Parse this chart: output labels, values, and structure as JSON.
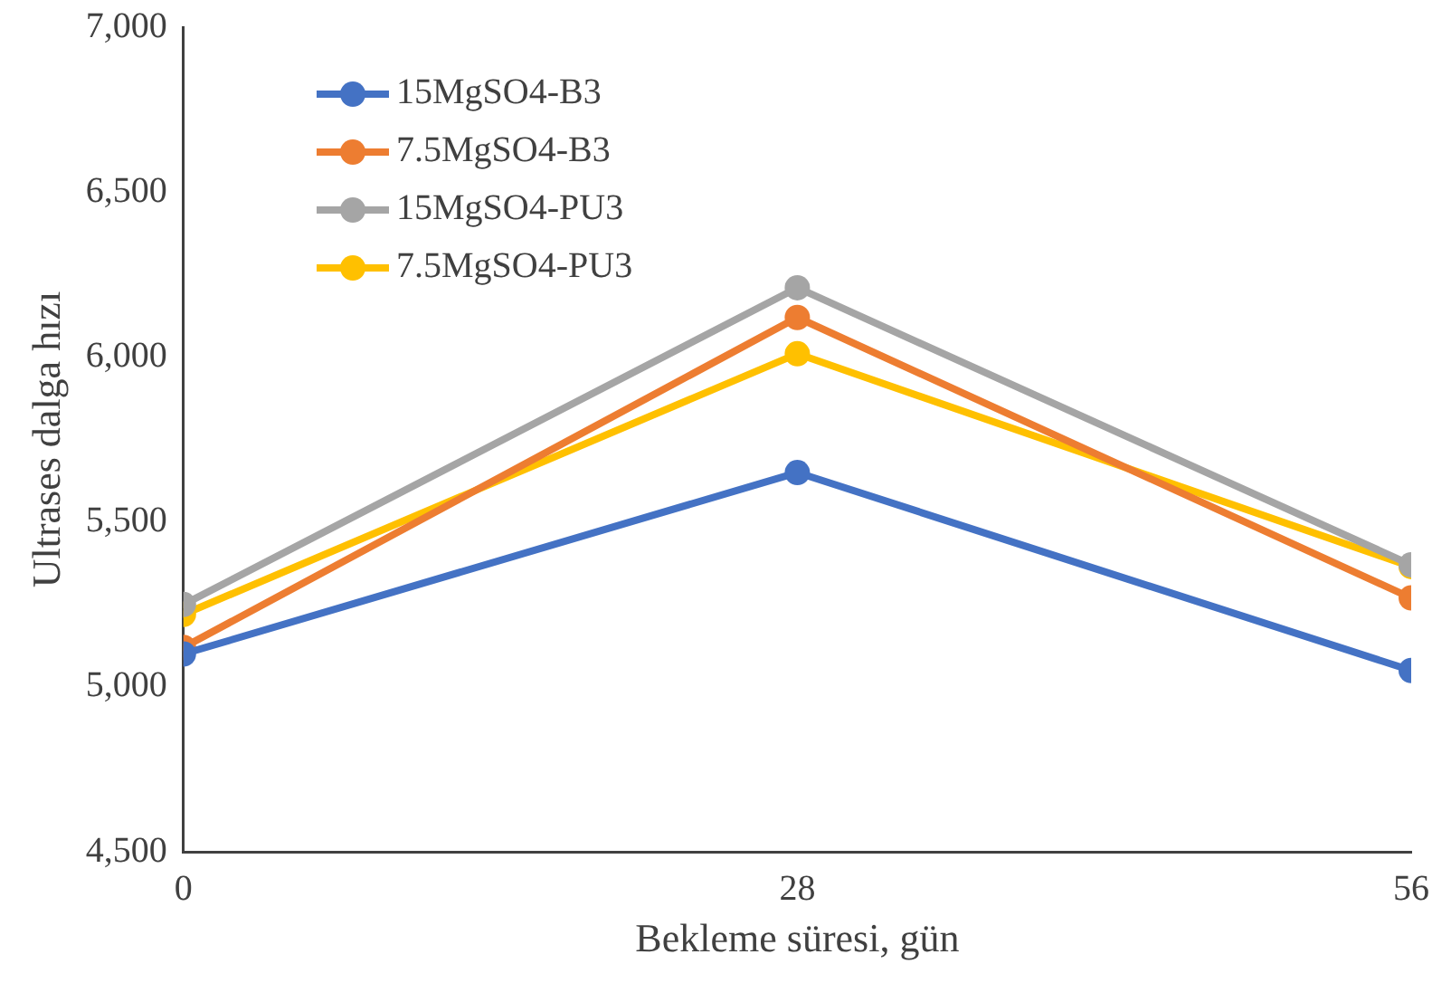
{
  "chart_data": {
    "type": "line",
    "xlabel": "Bekleme süresi, gün",
    "ylabel": "Ultrases dalga hızı",
    "x": [
      0,
      28,
      56
    ],
    "xlim": [
      0,
      56
    ],
    "xticks": [
      0,
      28,
      56
    ],
    "ylim": [
      4500,
      7000
    ],
    "yticks": [
      {
        "value": 4500,
        "label": "4,500"
      },
      {
        "value": 5000,
        "label": "5,000"
      },
      {
        "value": 5500,
        "label": "5,500"
      },
      {
        "value": 6000,
        "label": "6,000"
      },
      {
        "value": 6500,
        "label": "6,500"
      },
      {
        "value": 7000,
        "label": "7,000"
      }
    ],
    "grid": false,
    "legend": "top left",
    "marker": "circle",
    "line_style": "solid",
    "series": [
      {
        "name": "15MgSO4-B3",
        "color": "#4472c4",
        "values": [
          5100,
          5650,
          5050
        ]
      },
      {
        "name": "7.5MgSO4-B3",
        "color": "#ed7d31",
        "values": [
          5120,
          6120,
          5270
        ]
      },
      {
        "name": "15MgSO4-PU3",
        "color": "#a5a5a5",
        "values": [
          5250,
          6210,
          5370
        ]
      },
      {
        "name": "7.5MgSO4-PU3",
        "color": "#ffc000",
        "values": [
          5220,
          6010,
          5365
        ]
      }
    ]
  }
}
